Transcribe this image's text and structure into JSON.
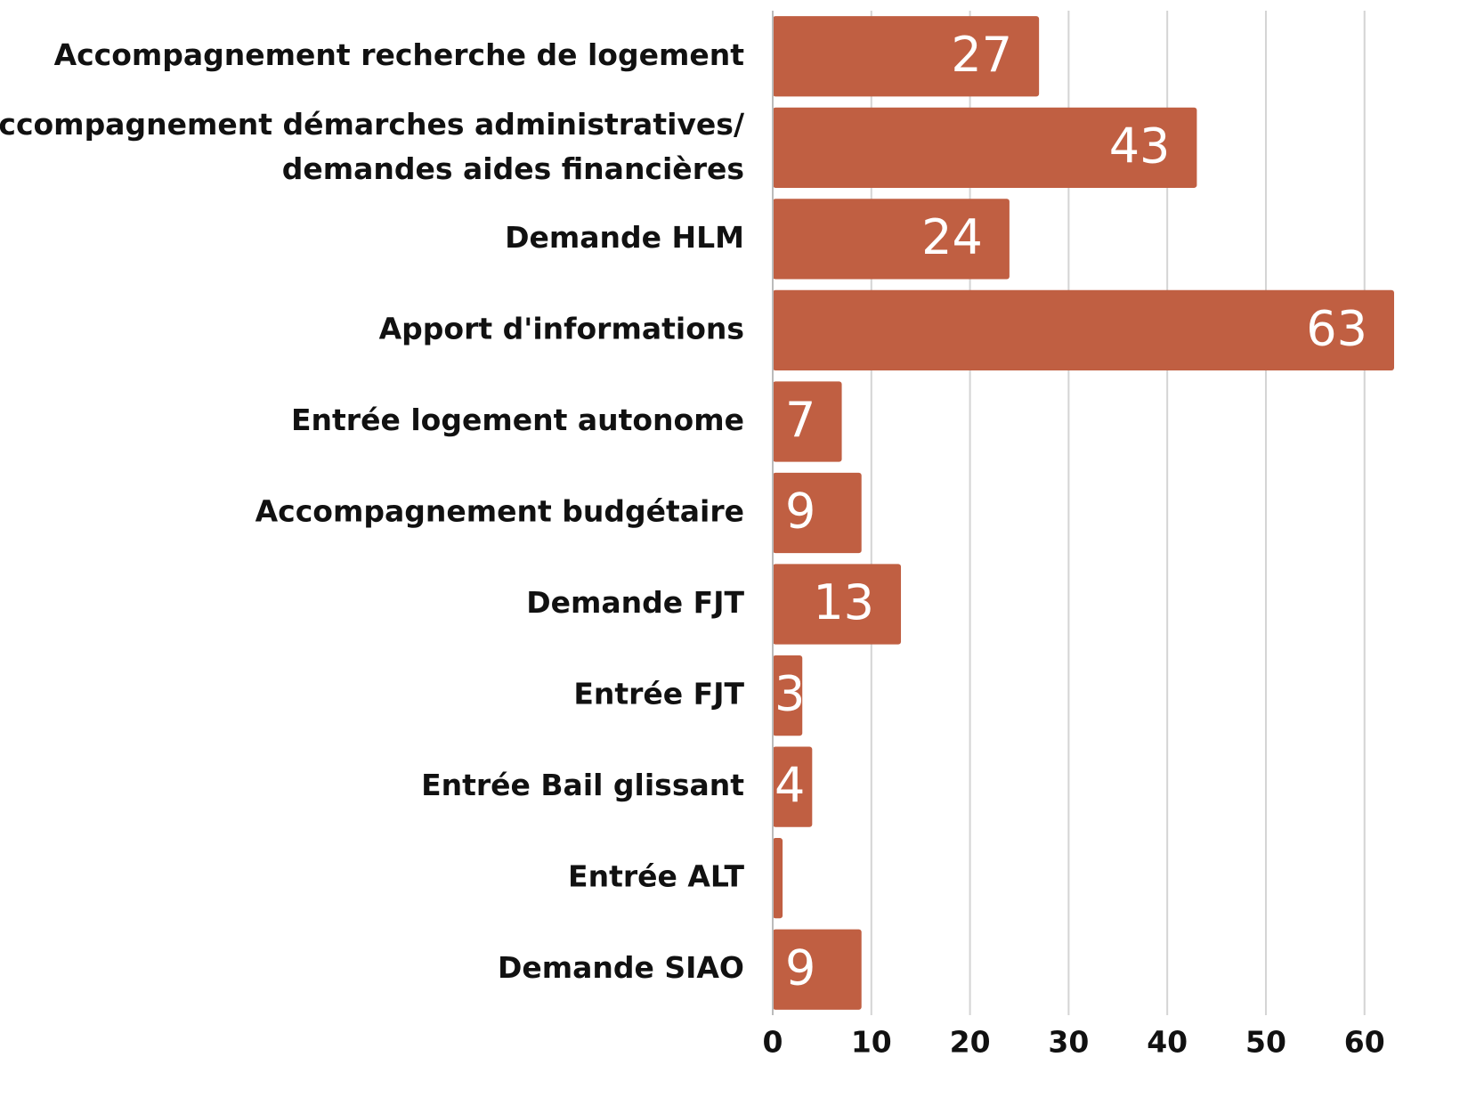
{
  "chart_data": {
    "type": "barh",
    "categories": [
      "Accompagnement recherche de logement",
      "Accompagnement démarches administratives/\ndemandes aides financières",
      "Demande HLM",
      "Apport d'informations",
      "Entrée logement autonome",
      "Accompagnement budgétaire",
      "Demande FJT",
      "Entrée FJT",
      "Entrée Bail glissant",
      "Entrée ALT",
      "Demande SIAO"
    ],
    "values": [
      27,
      43,
      24,
      63,
      7,
      9,
      13,
      3,
      4,
      1,
      9
    ],
    "color": "#c05f42",
    "xlim": [
      0,
      63
    ],
    "xticks": [
      0,
      10,
      20,
      30,
      40,
      50,
      60
    ],
    "grid": true
  }
}
